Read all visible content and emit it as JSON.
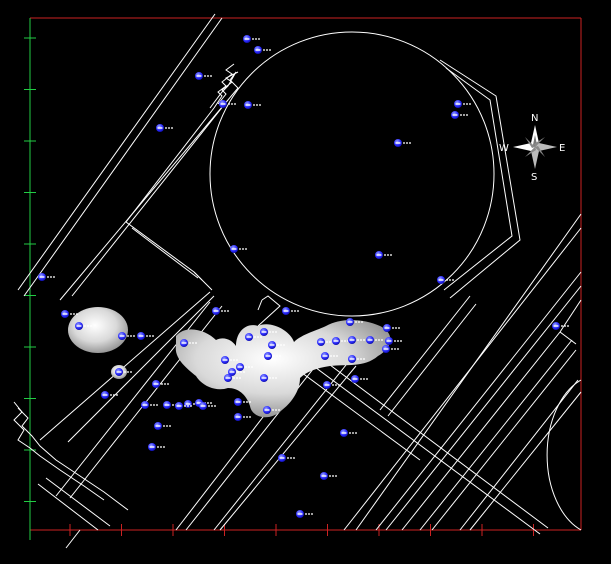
{
  "map": {
    "background": "#000000",
    "line_color": "#ffffff",
    "frame_color_top_right": "#cc2222",
    "frame_color_left": "#22cc44",
    "blob_color": "#e6e6e6",
    "point_color": "#1a1aff"
  },
  "compass": {
    "north": "N",
    "east": "E",
    "south": "S",
    "west": "W",
    "icon": "compass-rose-icon"
  },
  "points": {
    "count_visible": 60
  }
}
